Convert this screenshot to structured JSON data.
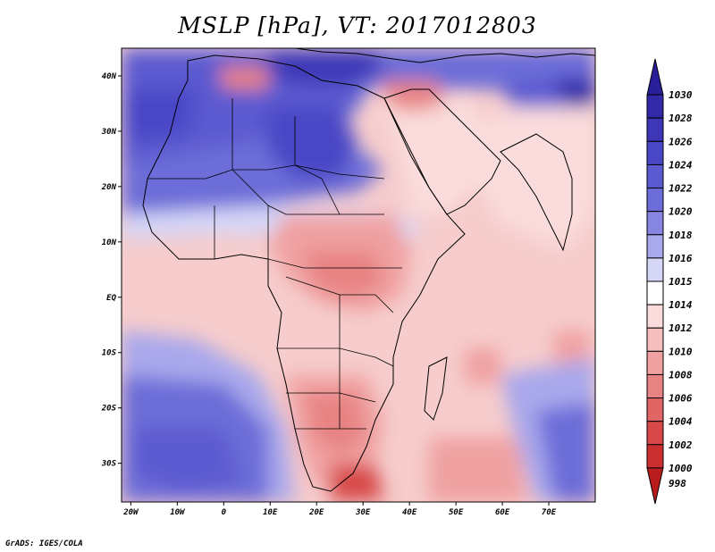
{
  "title": "MSLP [hPa], VT: 2017012803",
  "credit": "GrADS: IGES/COLA",
  "map": {
    "lon_range": [
      -22,
      80
    ],
    "lat_range": [
      -37,
      45
    ],
    "lon_ticks": [
      {
        "lon": -20,
        "label": "20W"
      },
      {
        "lon": -10,
        "label": "10W"
      },
      {
        "lon": 0,
        "label": "0"
      },
      {
        "lon": 10,
        "label": "10E"
      },
      {
        "lon": 20,
        "label": "20E"
      },
      {
        "lon": 30,
        "label": "30E"
      },
      {
        "lon": 40,
        "label": "40E"
      },
      {
        "lon": 50,
        "label": "50E"
      },
      {
        "lon": 60,
        "label": "60E"
      },
      {
        "lon": 70,
        "label": "70E"
      }
    ],
    "lat_ticks": [
      {
        "lat": 40,
        "label": "40N"
      },
      {
        "lat": 30,
        "label": "30N"
      },
      {
        "lat": 20,
        "label": "20N"
      },
      {
        "lat": 10,
        "label": "10N"
      },
      {
        "lat": 0,
        "label": "EQ"
      },
      {
        "lat": -10,
        "label": "10S"
      },
      {
        "lat": -20,
        "label": "20S"
      },
      {
        "lat": -30,
        "label": "30S"
      }
    ]
  },
  "colorbar": {
    "levels": [
      {
        "label": "1030",
        "color": "#2a1f9a"
      },
      {
        "label": "1028",
        "color": "#3229a8"
      },
      {
        "label": "1026",
        "color": "#3d37b8"
      },
      {
        "label": "1024",
        "color": "#4a47c6"
      },
      {
        "label": "1022",
        "color": "#5b5ad0"
      },
      {
        "label": "1020",
        "color": "#6c6dd8"
      },
      {
        "label": "1018",
        "color": "#8685e0"
      },
      {
        "label": "1016",
        "color": "#a9a8ec"
      },
      {
        "label": "1015",
        "color": "#d6d6f7"
      },
      {
        "label": "1014",
        "color": "#ffffff"
      },
      {
        "label": "1012",
        "color": "#fbdcdc"
      },
      {
        "label": "1010",
        "color": "#f6bfbf"
      },
      {
        "label": "1008",
        "color": "#f0a1a1"
      },
      {
        "label": "1006",
        "color": "#e88383"
      },
      {
        "label": "1004",
        "color": "#e06565"
      },
      {
        "label": "1002",
        "color": "#d84848"
      },
      {
        "label": "1000",
        "color": "#cc2f2f"
      },
      {
        "label": "998",
        "color": "#b81c1c"
      }
    ]
  }
}
